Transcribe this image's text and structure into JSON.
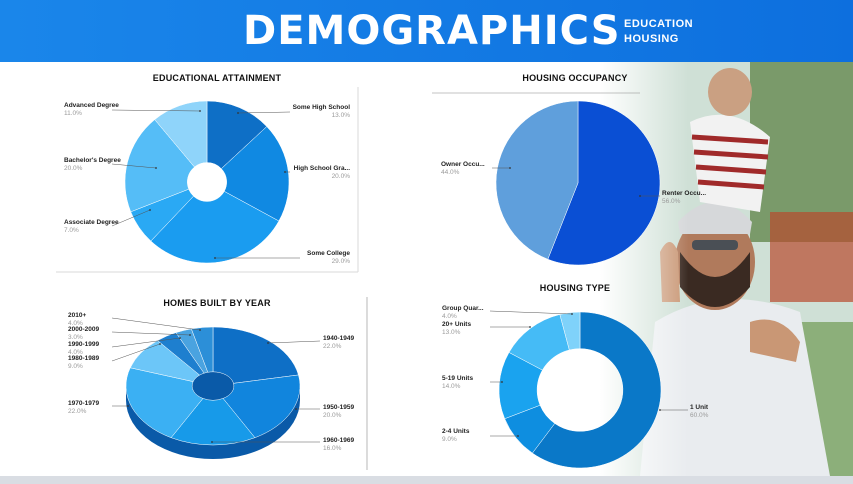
{
  "header": {
    "title": "DEMOGRAPHICS",
    "subtitle_1": "EDUCATION",
    "subtitle_2": "HOUSING",
    "color": "#0d6fde"
  },
  "chart_data": [
    {
      "type": "pie",
      "variant": "donut",
      "title": "EDUCATIONAL ATTAINMENT",
      "categories": [
        "Some High School",
        "High School Gra...",
        "Some College",
        "Associate Degree",
        "Bachelor's Degree",
        "Advanced Degree"
      ],
      "values": [
        13.0,
        20.0,
        29.0,
        7.0,
        20.0,
        11.0
      ],
      "labels": [
        "13.0%",
        "20.0%",
        "29.0%",
        "7.0%",
        "20.0%",
        "11.0%"
      ],
      "colors": [
        "#0e6fc6",
        "#1089e2",
        "#1a9cf0",
        "#2aa9f4",
        "#55bdf7",
        "#8fd4fa"
      ]
    },
    {
      "type": "pie",
      "title": "HOUSING OCCUPANCY",
      "categories": [
        "Renter Occu...",
        "Owner Occu..."
      ],
      "values": [
        56.0,
        44.0
      ],
      "labels": [
        "56.0%",
        "44.0%"
      ],
      "colors": [
        "#0a4fd4",
        "#5f9fdc"
      ]
    },
    {
      "type": "pie",
      "variant": "3d-donut",
      "title": "HOMES BUILT BY YEAR",
      "categories": [
        "1940-1949",
        "1950-1959",
        "1960-1969",
        "1970-1979",
        "1980-1989",
        "1990-1999",
        "2000-2009",
        "2010+"
      ],
      "values": [
        22.0,
        20.0,
        16.0,
        22.0,
        9.0,
        4.0,
        3.0,
        4.0
      ],
      "labels": [
        "22.0%",
        "20.0%",
        "16.0%",
        "22.0%",
        "9.0%",
        "4.0%",
        "3.0%",
        "4.0%"
      ],
      "colors": [
        "#0e6fc6",
        "#1185dd",
        "#179ae9",
        "#3bb0f3",
        "#6cc6f8",
        "#1e7fcf",
        "#4aa3e0",
        "#2c8fd8"
      ]
    },
    {
      "type": "pie",
      "variant": "donut",
      "title": "HOUSING TYPE",
      "categories": [
        "1 Unit",
        "2-4 Units",
        "5-19 Units",
        "20+ Units",
        "Group Quar..."
      ],
      "values": [
        60.0,
        9.0,
        14.0,
        13.0,
        4.0
      ],
      "labels": [
        "60.0%",
        "9.0%",
        "14.0%",
        "13.0%",
        "4.0%"
      ],
      "colors": [
        "#0a78c8",
        "#0e8ee0",
        "#1aa3ef",
        "#45bbf6",
        "#7fd2fa"
      ]
    }
  ]
}
